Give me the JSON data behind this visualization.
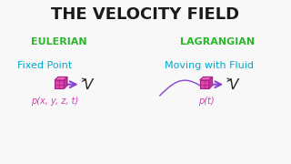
{
  "title": "THE VELOCITY FIELD",
  "title_color": "#1a1a1a",
  "title_fontsize": 13,
  "eulerian_label": "EULERIAN",
  "lagrangian_label": "LAGRANGIAN",
  "header_color": "#2db52d",
  "fixed_point_label": "Fixed Point",
  "moving_label": "Moving with Fluid",
  "subtext_color": "#00aacc",
  "eulerian_pos_label": "p(x, y, z, t)",
  "lagrangian_pos_label": "p(t)",
  "pos_label_color": "#cc44aa",
  "cube_color": "#dd44aa",
  "cube_edge_color": "#aa2288",
  "arrow_color": "#8844cc",
  "v_label": "V",
  "bg_color": "#f8f8f8"
}
